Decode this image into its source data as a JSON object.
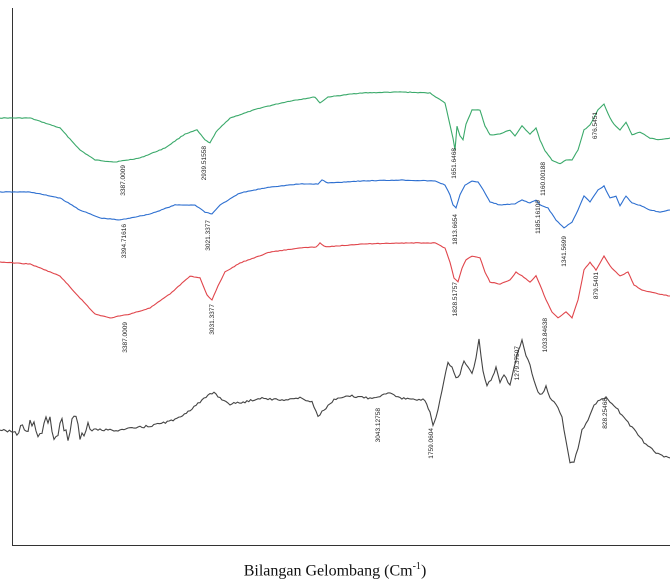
{
  "chart_data": {
    "type": "line",
    "title": "",
    "xlabel": "Bilangan Gelombang (Cm",
    "xlabel_sup": "-1",
    "xlabel_close": ")",
    "ylabel": "",
    "grid": false,
    "legend": "none",
    "series": [
      {
        "color": "#3aa96a",
        "points": [
          [
            0,
            118
          ],
          [
            30,
            118
          ],
          [
            60,
            128
          ],
          [
            80,
            150
          ],
          [
            95,
            160
          ],
          [
            115,
            162
          ],
          [
            140,
            158
          ],
          [
            165,
            148
          ],
          [
            185,
            134
          ],
          [
            197,
            130
          ],
          [
            205,
            140
          ],
          [
            210,
            143
          ],
          [
            216,
            132
          ],
          [
            230,
            118
          ],
          [
            260,
            108
          ],
          [
            290,
            101
          ],
          [
            315,
            97
          ],
          [
            320,
            103
          ],
          [
            328,
            97
          ],
          [
            360,
            93
          ],
          [
            400,
            92
          ],
          [
            430,
            93
          ],
          [
            445,
            103
          ],
          [
            450,
            125
          ],
          [
            453,
            138
          ],
          [
            455,
            150
          ],
          [
            457,
            126
          ],
          [
            460,
            136
          ],
          [
            463,
            140
          ],
          [
            466,
            124
          ],
          [
            472,
            110
          ],
          [
            480,
            110
          ],
          [
            485,
            126
          ],
          [
            490,
            135
          ],
          [
            500,
            134
          ],
          [
            510,
            130
          ],
          [
            515,
            136
          ],
          [
            522,
            126
          ],
          [
            530,
            134
          ],
          [
            536,
            128
          ],
          [
            540,
            140
          ],
          [
            545,
            151
          ],
          [
            552,
            160
          ],
          [
            560,
            164
          ],
          [
            566,
            160
          ],
          [
            572,
            160
          ],
          [
            578,
            150
          ],
          [
            584,
            130
          ],
          [
            590,
            125
          ],
          [
            598,
            110
          ],
          [
            604,
            104
          ],
          [
            610,
            118
          ],
          [
            614,
            124
          ],
          [
            620,
            130
          ],
          [
            626,
            122
          ],
          [
            632,
            135
          ],
          [
            640,
            132
          ],
          [
            650,
            138
          ],
          [
            658,
            140
          ],
          [
            670,
            138
          ]
        ],
        "annotations": [
          "3387.0009",
          "2939.51558",
          "1651.6468",
          "1160.00188",
          "676.5451"
        ]
      },
      {
        "color": "#2d6fd0",
        "points": [
          [
            0,
            192
          ],
          [
            30,
            192
          ],
          [
            60,
            198
          ],
          [
            80,
            210
          ],
          [
            100,
            218
          ],
          [
            120,
            220
          ],
          [
            150,
            214
          ],
          [
            175,
            205
          ],
          [
            195,
            205
          ],
          [
            205,
            212
          ],
          [
            212,
            214
          ],
          [
            220,
            205
          ],
          [
            240,
            193
          ],
          [
            270,
            187
          ],
          [
            300,
            184
          ],
          [
            318,
            184
          ],
          [
            322,
            180
          ],
          [
            328,
            183
          ],
          [
            360,
            181
          ],
          [
            400,
            180
          ],
          [
            435,
            181
          ],
          [
            445,
            185
          ],
          [
            450,
            195
          ],
          [
            453,
            205
          ],
          [
            456,
            208
          ],
          [
            460,
            195
          ],
          [
            465,
            185
          ],
          [
            472,
            181
          ],
          [
            478,
            182
          ],
          [
            485,
            193
          ],
          [
            490,
            202
          ],
          [
            500,
            205
          ],
          [
            515,
            204
          ],
          [
            522,
            200
          ],
          [
            530,
            203
          ],
          [
            536,
            200
          ],
          [
            540,
            205
          ],
          [
            548,
            208
          ],
          [
            556,
            220
          ],
          [
            564,
            228
          ],
          [
            572,
            222
          ],
          [
            578,
            210
          ],
          [
            584,
            196
          ],
          [
            590,
            202
          ],
          [
            598,
            190
          ],
          [
            604,
            186
          ],
          [
            610,
            198
          ],
          [
            616,
            196
          ],
          [
            620,
            206
          ],
          [
            626,
            196
          ],
          [
            632,
            203
          ],
          [
            642,
            206
          ],
          [
            650,
            210
          ],
          [
            660,
            212
          ],
          [
            670,
            210
          ]
        ],
        "annotations": [
          "3394.71616",
          "3021.3377",
          "1813.6654",
          "1185.16109",
          "1341.5699"
        ]
      },
      {
        "color": "#e0454b",
        "points": [
          [
            0,
            262
          ],
          [
            30,
            264
          ],
          [
            60,
            276
          ],
          [
            80,
            298
          ],
          [
            95,
            314
          ],
          [
            110,
            318
          ],
          [
            130,
            314
          ],
          [
            150,
            308
          ],
          [
            170,
            294
          ],
          [
            190,
            276
          ],
          [
            200,
            278
          ],
          [
            207,
            295
          ],
          [
            212,
            300
          ],
          [
            218,
            286
          ],
          [
            225,
            272
          ],
          [
            240,
            263
          ],
          [
            270,
            252
          ],
          [
            300,
            248
          ],
          [
            316,
            247
          ],
          [
            320,
            243
          ],
          [
            326,
            247
          ],
          [
            360,
            244
          ],
          [
            400,
            243
          ],
          [
            435,
            243
          ],
          [
            445,
            248
          ],
          [
            450,
            262
          ],
          [
            454,
            278
          ],
          [
            458,
            282
          ],
          [
            462,
            268
          ],
          [
            466,
            260
          ],
          [
            472,
            256
          ],
          [
            480,
            258
          ],
          [
            485,
            272
          ],
          [
            490,
            282
          ],
          [
            500,
            284
          ],
          [
            510,
            280
          ],
          [
            516,
            272
          ],
          [
            522,
            276
          ],
          [
            530,
            282
          ],
          [
            536,
            276
          ],
          [
            540,
            285
          ],
          [
            546,
            300
          ],
          [
            552,
            312
          ],
          [
            558,
            318
          ],
          [
            566,
            312
          ],
          [
            572,
            318
          ],
          [
            578,
            300
          ],
          [
            584,
            270
          ],
          [
            590,
            262
          ],
          [
            596,
            270
          ],
          [
            604,
            256
          ],
          [
            610,
            266
          ],
          [
            614,
            270
          ],
          [
            620,
            276
          ],
          [
            628,
            272
          ],
          [
            634,
            285
          ],
          [
            642,
            290
          ],
          [
            650,
            292
          ],
          [
            660,
            294
          ],
          [
            670,
            296
          ]
        ],
        "annotations": [
          "3387.0009",
          "3031.3377",
          "1828.51757",
          "1033.84638",
          "879.5401"
        ]
      },
      {
        "color": "#444444",
        "points": [
          [
            0,
            430
          ],
          [
            15,
            432
          ],
          [
            30,
            426
          ],
          [
            40,
            432
          ],
          [
            50,
            420
          ],
          [
            56,
            438
          ],
          [
            62,
            424
          ],
          [
            68,
            434
          ],
          [
            74,
            418
          ],
          [
            80,
            432
          ],
          [
            90,
            430
          ],
          [
            120,
            430
          ],
          [
            150,
            426
          ],
          [
            175,
            420
          ],
          [
            190,
            410
          ],
          [
            200,
            402
          ],
          [
            208,
            396
          ],
          [
            214,
            392
          ],
          [
            220,
            398
          ],
          [
            230,
            404
          ],
          [
            245,
            402
          ],
          [
            260,
            398
          ],
          [
            280,
            400
          ],
          [
            300,
            398
          ],
          [
            312,
            402
          ],
          [
            318,
            416
          ],
          [
            324,
            410
          ],
          [
            334,
            400
          ],
          [
            350,
            396
          ],
          [
            370,
            398
          ],
          [
            380,
            396
          ],
          [
            390,
            392
          ],
          [
            400,
            398
          ],
          [
            415,
            400
          ],
          [
            425,
            400
          ],
          [
            430,
            412
          ],
          [
            433,
            425
          ],
          [
            436,
            418
          ],
          [
            440,
            400
          ],
          [
            444,
            380
          ],
          [
            448,
            362
          ],
          [
            452,
            368
          ],
          [
            456,
            378
          ],
          [
            460,
            375
          ],
          [
            464,
            360
          ],
          [
            468,
            368
          ],
          [
            472,
            374
          ],
          [
            476,
            358
          ],
          [
            479,
            340
          ],
          [
            483,
            372
          ],
          [
            487,
            385
          ],
          [
            491,
            380
          ],
          [
            496,
            368
          ],
          [
            500,
            382
          ],
          [
            504,
            375
          ],
          [
            510,
            385
          ],
          [
            514,
            368
          ],
          [
            518,
            352
          ],
          [
            522,
            340
          ],
          [
            526,
            355
          ],
          [
            530,
            365
          ],
          [
            534,
            380
          ],
          [
            538,
            392
          ],
          [
            542,
            395
          ],
          [
            546,
            386
          ],
          [
            550,
            398
          ],
          [
            556,
            404
          ],
          [
            562,
            418
          ],
          [
            566,
            440
          ],
          [
            570,
            462
          ],
          [
            574,
            462
          ],
          [
            578,
            448
          ],
          [
            582,
            430
          ],
          [
            588,
            420
          ],
          [
            594,
            405
          ],
          [
            600,
            400
          ],
          [
            606,
            398
          ],
          [
            612,
            404
          ],
          [
            618,
            410
          ],
          [
            626,
            420
          ],
          [
            634,
            430
          ],
          [
            642,
            440
          ],
          [
            650,
            448
          ],
          [
            660,
            455
          ],
          [
            670,
            458
          ]
        ],
        "annotations": [
          "3043.12758",
          "1759.0604",
          "1279.37507",
          "828.25468"
        ]
      }
    ]
  }
}
